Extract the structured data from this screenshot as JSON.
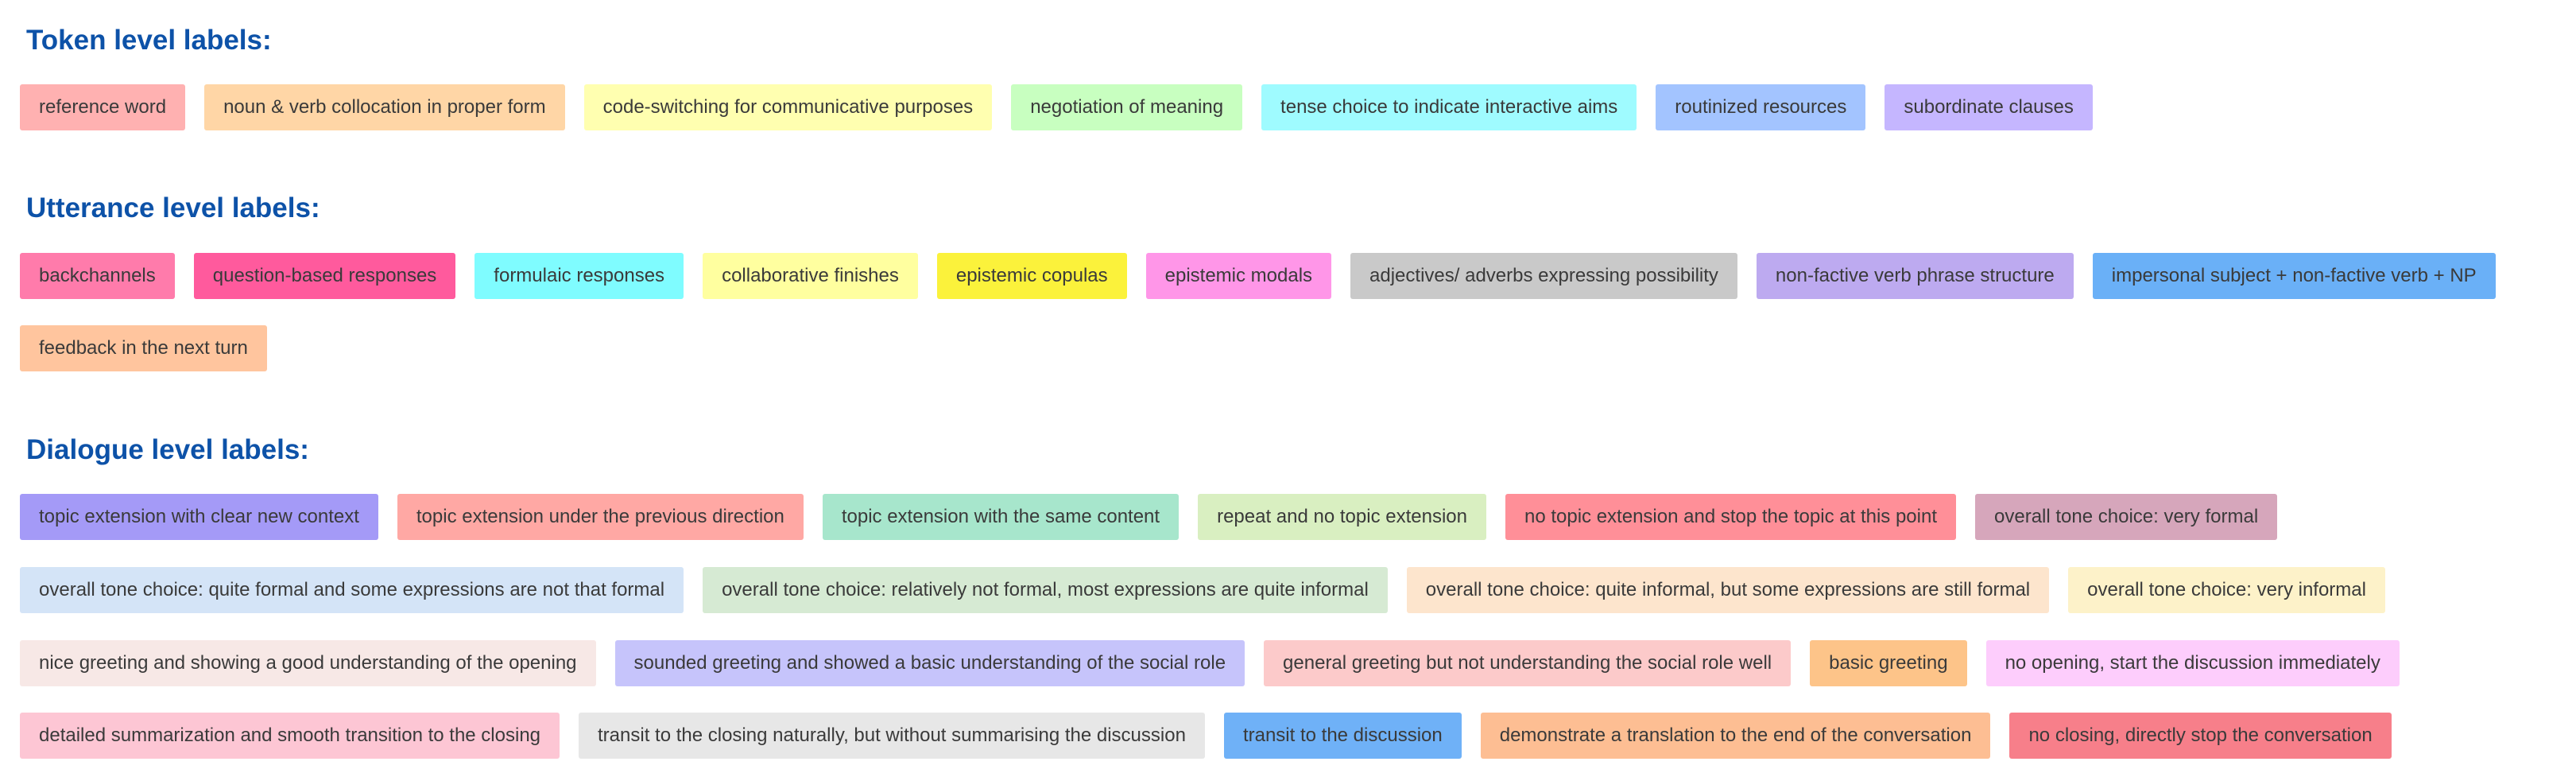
{
  "sections": [
    {
      "title": "Token level labels:",
      "rows": [
        [
          {
            "label": "reference word",
            "color": "#ffb1b1"
          },
          {
            "label": "noun & verb collocation in proper form",
            "color": "#ffd6a6"
          },
          {
            "label": "code-switching for communicative purposes",
            "color": "#ffffb0"
          },
          {
            "label": "negotiation of meaning",
            "color": "#c8ffc0"
          },
          {
            "label": "tense choice to indicate interactive aims",
            "color": "#9ffbff"
          },
          {
            "label": "routinized resources",
            "color": "#a3c4ff"
          },
          {
            "label": "subordinate clauses",
            "color": "#c5b6ff"
          }
        ]
      ]
    },
    {
      "title": "Utterance level labels:",
      "rows": [
        [
          {
            "label": "backchannels",
            "color": "#ff7bab"
          },
          {
            "label": "question-based responses",
            "color": "#ff5a9d"
          },
          {
            "label": "formulaic responses",
            "color": "#7ffcff"
          },
          {
            "label": "collaborative finishes",
            "color": "#ffff9f"
          },
          {
            "label": "epistemic copulas",
            "color": "#fbf23b"
          },
          {
            "label": "epistemic modals",
            "color": "#ff96e8"
          },
          {
            "label": "adjectives/ adverbs expressing possibility",
            "color": "#c9c9c9"
          },
          {
            "label": "non-factive verb phrase structure",
            "color": "#bdaaf0"
          },
          {
            "label": "impersonal subject + non-factive verb + NP",
            "color": "#6ab0f7"
          }
        ],
        [
          {
            "label": "feedback in the next turn",
            "color": "#ffc59e"
          }
        ]
      ]
    },
    {
      "title": "Dialogue level labels:",
      "rows": [
        [
          {
            "label": "topic extension with clear new context",
            "color": "#a49af7"
          },
          {
            "label": "topic extension under the previous direction",
            "color": "#ffa8a4"
          },
          {
            "label": "topic extension with the same content",
            "color": "#a7e6cc"
          },
          {
            "label": "repeat and no topic extension",
            "color": "#d9efc1"
          },
          {
            "label": "no topic extension and stop the topic at this point",
            "color": "#ff8f98"
          },
          {
            "label": "overall tone choice: very formal",
            "color": "#d6a6bb"
          }
        ],
        [
          {
            "label": "overall tone choice: quite formal and some expressions are not that formal",
            "color": "#d4e4f7"
          },
          {
            "label": "overall tone choice: relatively not formal, most expressions are quite informal",
            "color": "#d6ead3"
          },
          {
            "label": "overall tone choice: quite informal, but some expressions are still formal",
            "color": "#fde5cd"
          },
          {
            "label": "overall tone choice: very informal",
            "color": "#fdf2c9"
          }
        ],
        [
          {
            "label": "nice greeting and showing a good understanding of the opening",
            "color": "#f7e8e6"
          },
          {
            "label": "sounded greeting and showed a basic understanding of the social role",
            "color": "#c6c4fb"
          },
          {
            "label": "general greeting but not understanding the social role well",
            "color": "#fccaca"
          },
          {
            "label": "basic greeting",
            "color": "#fdc489"
          },
          {
            "label": "no opening, start the discussion immediately",
            "color": "#fdcdfc"
          }
        ],
        [
          {
            "label": "detailed summarization and smooth transition to the closing",
            "color": "#fdc6d4"
          },
          {
            "label": "transit to the closing naturally, but without summarising the discussion",
            "color": "#e7e7e7"
          },
          {
            "label": "transit to the discussion",
            "color": "#6fb1f7"
          },
          {
            "label": "demonstrate a translation to the end of the conversation",
            "color": "#fdbe93"
          },
          {
            "label": "no closing, directly stop the conversation",
            "color": "#f77f8a"
          }
        ]
      ]
    }
  ]
}
